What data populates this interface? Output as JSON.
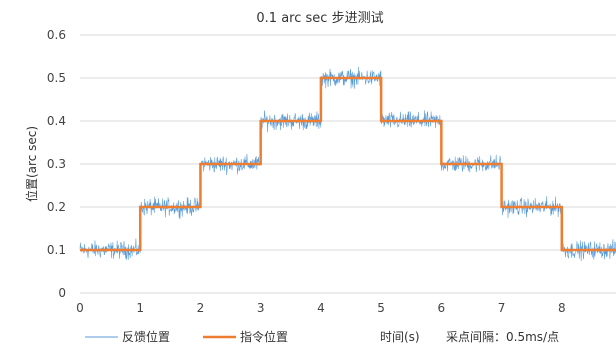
{
  "chart_data": {
    "type": "line",
    "title": "0.1 arc sec 步进测试",
    "ylabel": "位置(arc sec)",
    "xlabel": "时间(s)",
    "note": "采点间隔：0.5ms/点",
    "xlim": [
      0,
      8.9
    ],
    "ylim": [
      0,
      0.6
    ],
    "x_ticks": [
      0,
      1,
      2,
      3,
      4,
      5,
      6,
      7,
      8
    ],
    "y_ticks": [
      0,
      0.1,
      0.2,
      0.3,
      0.4,
      0.5,
      0.6
    ],
    "y_tick_labels": [
      "0",
      "0.1",
      "0.2",
      "0.3",
      "0.4",
      "0.5",
      "0.6"
    ],
    "grid": true,
    "legend_position": "bottom-left",
    "series": [
      {
        "name": "反馈位置",
        "color": "#5b9bd5",
        "style": "noisy",
        "noise_amplitude": 0.03,
        "x": [
          0,
          1,
          1,
          2,
          2,
          3,
          3,
          4,
          4,
          5,
          5,
          6,
          6,
          7,
          7,
          8,
          8,
          8.9
        ],
        "y": [
          0.1,
          0.1,
          0.2,
          0.2,
          0.3,
          0.3,
          0.4,
          0.4,
          0.5,
          0.5,
          0.4,
          0.4,
          0.3,
          0.3,
          0.2,
          0.2,
          0.1,
          0.1
        ]
      },
      {
        "name": "指令位置",
        "color": "#ed7d31",
        "style": "step",
        "x": [
          0,
          1,
          1,
          2,
          2,
          3,
          3,
          4,
          4,
          5,
          5,
          6,
          6,
          7,
          7,
          8,
          8,
          8.9
        ],
        "y": [
          0.1,
          0.1,
          0.2,
          0.2,
          0.3,
          0.3,
          0.4,
          0.4,
          0.5,
          0.5,
          0.4,
          0.4,
          0.3,
          0.3,
          0.2,
          0.2,
          0.1,
          0.1
        ]
      }
    ]
  }
}
